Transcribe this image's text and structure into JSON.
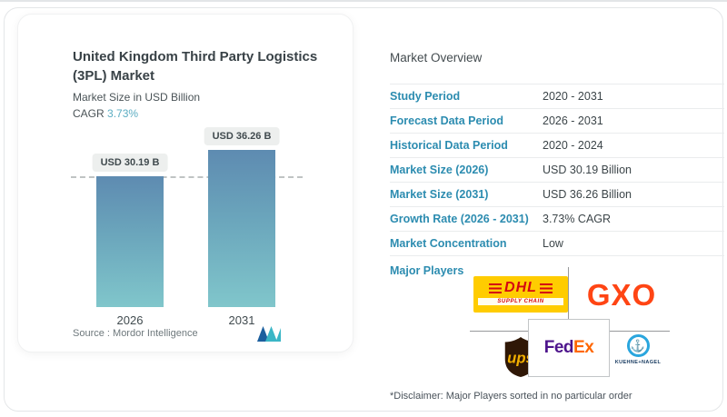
{
  "left_card": {
    "title": "United Kingdom Third Party Logistics (3PL) Market",
    "subtitle": "Market Size in USD Billion",
    "cagr_label": "CAGR",
    "cagr_value": "3.73%",
    "source_label": "Source :",
    "source_value": "Mordor Intelligence",
    "logo": "mordor-intelligence-logo"
  },
  "chart_data": {
    "type": "bar",
    "title": "United Kingdom Third Party Logistics (3PL) Market",
    "ylabel": "Market Size in USD Billion",
    "categories": [
      "2026",
      "2031"
    ],
    "values": [
      30.19,
      36.26
    ],
    "bar_labels": [
      "USD 30.19 B",
      "USD 36.26 B"
    ],
    "cagr_pct": 3.73,
    "reference_line_value": 30.19,
    "ylim": [
      0,
      38
    ],
    "grid": false,
    "legend": "none",
    "bar_gradient_top": "#5e8bb1",
    "bar_gradient_bottom": "#80c6cb"
  },
  "overview": {
    "heading": "Market Overview",
    "rows": [
      {
        "label": "Study Period",
        "value": "2020 - 2031"
      },
      {
        "label": "Forecast Data Period",
        "value": "2026 - 2031"
      },
      {
        "label": "Historical Data Period",
        "value": "2020 - 2024"
      },
      {
        "label": "Market Size (2026)",
        "value": "USD 30.19 Billion"
      },
      {
        "label": "Market Size (2031)",
        "value": "USD 36.26 Billion"
      },
      {
        "label": "Growth Rate (2026 - 2031)",
        "value": "3.73% CAGR"
      },
      {
        "label": "Market Concentration",
        "value": "Low"
      }
    ],
    "major_players_label": "Major Players",
    "players": {
      "dhl": {
        "name": "DHL Supply Chain",
        "text": "DHL",
        "subtext": "SUPPLY CHAIN"
      },
      "gxo": {
        "name": "GXO",
        "text": "GXO"
      },
      "ups": {
        "name": "UPS",
        "text": "ups"
      },
      "fedex": {
        "name": "FedEx",
        "fed": "Fed",
        "ex": "Ex"
      },
      "kn": {
        "name": "Kuehne + Nagel",
        "text": "KUEHNE+NAGEL"
      }
    },
    "disclaimer": "*Disclaimer: Major Players sorted in no particular order"
  },
  "colors": {
    "accent_label_blue": "#2c8cb0",
    "cagr_teal": "#5cadc2",
    "bar_top": "#5e8bb1",
    "bar_bottom": "#80c6cb",
    "dhl_yellow": "#ffcc00",
    "dhl_red": "#d40511",
    "gxo_orange": "#ff4514",
    "ups_brown": "#2f1706",
    "ups_gold": "#f2af00",
    "fedex_purple": "#4d148c",
    "fedex_orange": "#ff6600",
    "kn_blue": "#2aa6de",
    "kn_navy": "#16395f",
    "mordor_dark_blue": "#1c5f9e",
    "mordor_teal": "#3ab6c6"
  }
}
